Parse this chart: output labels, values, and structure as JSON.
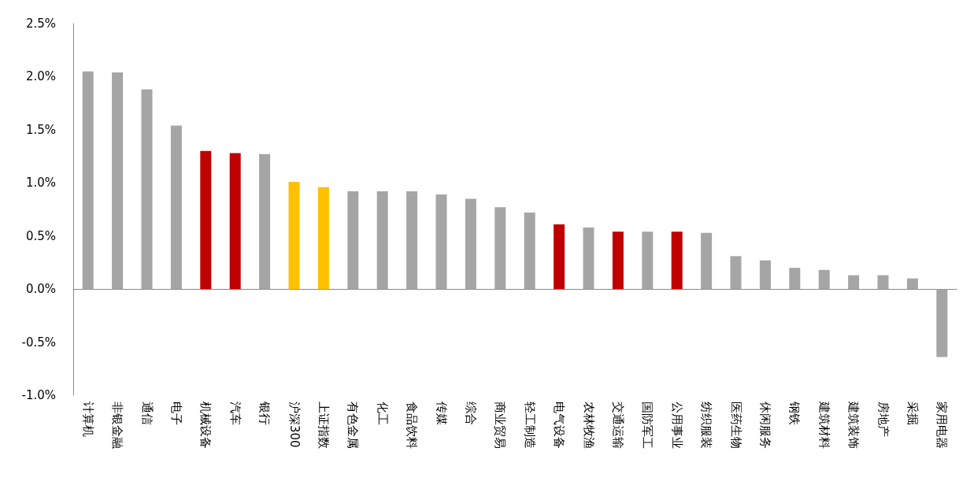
{
  "chart_data": {
    "type": "bar",
    "categories": [
      "计算机",
      "非银金融",
      "通信",
      "电子",
      "机械设备",
      "汽车",
      "银行",
      "沪深300",
      "上证指数",
      "有色金属",
      "化工",
      "食品饮料",
      "传媒",
      "综合",
      "商业贸易",
      "轻工制造",
      "电气设备",
      "农林牧渔",
      "交通运输",
      "国防军工",
      "公用事业",
      "纺织服装",
      "医药生物",
      "休闲服务",
      "钢铁",
      "建筑材料",
      "建筑装饰",
      "房地产",
      "采掘",
      "家用电器"
    ],
    "values": [
      2.05,
      2.04,
      1.88,
      1.54,
      1.3,
      1.28,
      1.27,
      1.01,
      0.96,
      0.92,
      0.92,
      0.92,
      0.89,
      0.85,
      0.77,
      0.72,
      0.61,
      0.58,
      0.54,
      0.54,
      0.54,
      0.53,
      0.31,
      0.27,
      0.2,
      0.18,
      0.13,
      0.13,
      0.1,
      -0.64
    ],
    "colors": [
      "#a5a5a5",
      "#a5a5a5",
      "#a5a5a5",
      "#a5a5a5",
      "#c00000",
      "#c00000",
      "#a5a5a5",
      "#ffc000",
      "#ffc000",
      "#a5a5a5",
      "#a5a5a5",
      "#a5a5a5",
      "#a5a5a5",
      "#a5a5a5",
      "#a5a5a5",
      "#a5a5a5",
      "#c00000",
      "#a5a5a5",
      "#c00000",
      "#a5a5a5",
      "#c00000",
      "#a5a5a5",
      "#a5a5a5",
      "#a5a5a5",
      "#a5a5a5",
      "#a5a5a5",
      "#a5a5a5",
      "#a5a5a5",
      "#a5a5a5",
      "#a5a5a5"
    ],
    "ylim": [
      -1,
      2.5
    ],
    "yticks": [
      {
        "value": -1,
        "label": "-1.0%"
      },
      {
        "value": -0.5,
        "label": "-0.5%"
      },
      {
        "value": 0,
        "label": "0.0%"
      },
      {
        "value": 0.5,
        "label": "0.5%"
      },
      {
        "value": 1,
        "label": "1.0%"
      },
      {
        "value": 1.5,
        "label": "1.5%"
      },
      {
        "value": 2,
        "label": "2.0%"
      },
      {
        "value": 2.5,
        "label": "2.5%"
      }
    ],
    "tick_labels": true
  }
}
